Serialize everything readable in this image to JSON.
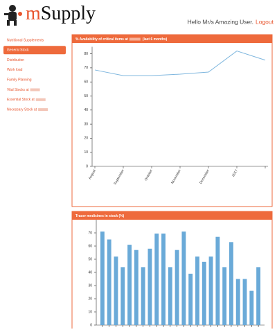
{
  "header": {
    "logo_m": "m",
    "logo_rest": "Supply",
    "greeting": "Hello Mr/s Amazing User.",
    "logout": "Logout"
  },
  "nav": [
    "Nutritional Supplements",
    "General Stock",
    "Distribution",
    "Work load",
    "Family Planning",
    "Vital Stocks at",
    "Essential Stock at",
    "Necessary Stock at"
  ],
  "nav_active": 1,
  "chart_data": [
    {
      "type": "line",
      "title": "% Availability of critical items at",
      "title_note": "(last 6 months)",
      "categories": [
        "August",
        "September",
        "October",
        "November",
        "December",
        "2017",
        null
      ],
      "values": [
        68.5,
        64.5,
        64.5,
        65.5,
        67,
        82,
        75.5
      ],
      "color": "#7eb6de",
      "ylim": [
        0,
        85
      ],
      "yticks": [
        0,
        10,
        20,
        30,
        40,
        50,
        60,
        70,
        80
      ],
      "grid": false
    },
    {
      "type": "bar",
      "title": "Tracer medicines in stock (%)",
      "categories": [
        null,
        null,
        null,
        null,
        null,
        null,
        null,
        null,
        null,
        null,
        null,
        null,
        null,
        null,
        null,
        null,
        null,
        null,
        null,
        null,
        null,
        null,
        null,
        null
      ],
      "values": [
        71,
        65,
        52,
        44,
        61,
        57,
        44,
        58,
        69.5,
        69.5,
        44,
        57,
        71,
        39,
        52,
        48,
        52,
        67,
        44,
        63,
        35,
        35,
        26,
        44
      ],
      "color": "#6aaad8",
      "ylim": [
        0,
        80
      ],
      "yticks": [
        0,
        10,
        20,
        30,
        40,
        50,
        60,
        70
      ],
      "grid": false
    }
  ]
}
